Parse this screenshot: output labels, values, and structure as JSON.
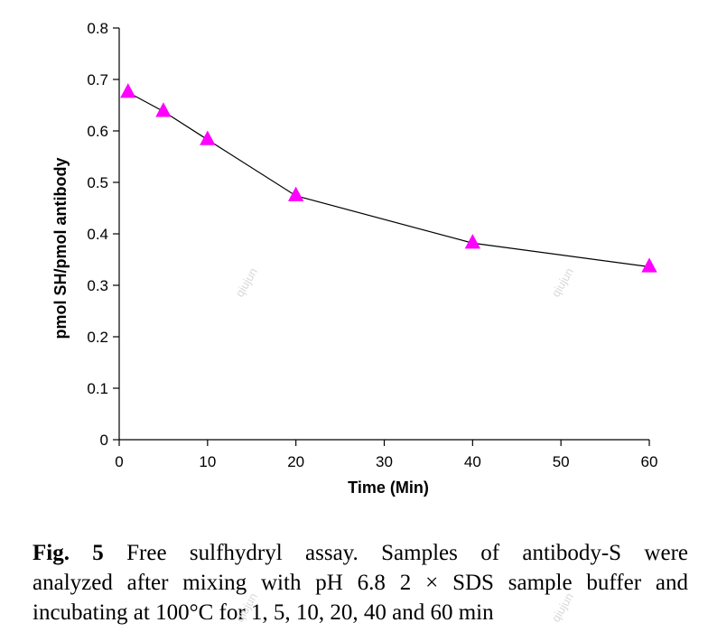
{
  "chart_data": {
    "type": "line",
    "title": "",
    "xlabel": "Time (Min)",
    "ylabel": "pmol SH/pmol antibody",
    "xlim": [
      0,
      60
    ],
    "ylim": [
      0,
      0.8
    ],
    "x_ticks": [
      0,
      10,
      20,
      30,
      40,
      50,
      60
    ],
    "y_ticks": [
      "0",
      "0.1",
      "0.2",
      "0.3",
      "0.4",
      "0.5",
      "0.6",
      "0.7",
      "0.8"
    ],
    "grid": false,
    "legend": "none",
    "marker": "triangle",
    "marker_color": "#ff00ff",
    "line_color": "#000000",
    "series": [
      {
        "x": [
          1,
          5,
          10,
          20,
          40,
          60
        ],
        "y": [
          0.675,
          0.638,
          0.583,
          0.474,
          0.382,
          0.336
        ]
      }
    ]
  },
  "watermarks": [
    "qiujun",
    "qiujun",
    "qiujun",
    "qiujun"
  ],
  "caption": {
    "fig_label": "Fig. 5",
    "line1": "Free sulfhydryl assay. Samples of antibody-S were",
    "line2": "analyzed after mixing with pH 6.8 2 × SDS sample buffer and",
    "line3": "incubating at 100°C for 1, 5, 10, 20, 40 and 60 min"
  }
}
